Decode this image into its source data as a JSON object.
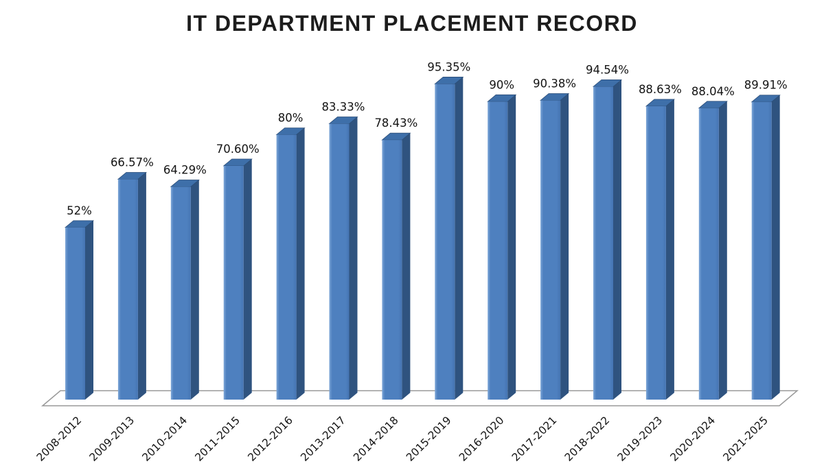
{
  "page": {
    "background": "#ffffff"
  },
  "chart_data": {
    "type": "bar",
    "style": "3d-column",
    "title": "IT DEPARTMENT PLACEMENT RECORD",
    "xlabel": "",
    "ylabel": "",
    "ylim": [
      0,
      100
    ],
    "grid": false,
    "legend": false,
    "axes_visible": false,
    "floor_visible": true,
    "categories": [
      "2008-2012",
      "2009-2013",
      "2010-2014",
      "2011-2015",
      "2012-2016",
      "2013-2017",
      "2014-2018",
      "2015-2019",
      "2016-2020",
      "2017-2021",
      "2018-2022",
      "2019-2023",
      "2020-2024",
      "2021-2025"
    ],
    "values": [
      52,
      66.57,
      64.29,
      70.6,
      80,
      83.33,
      78.43,
      95.35,
      90,
      90.38,
      94.54,
      88.63,
      88.04,
      89.91
    ],
    "value_labels": [
      "52%",
      "66.57%",
      "64.29%",
      "70.60%",
      "80%",
      "83.33%",
      "78.43%",
      "95.35%",
      "90%",
      "90.38%",
      "94.54%",
      "88.63%",
      "88.04%",
      "89.91%"
    ],
    "colors": {
      "bar_front": "#4e80bf",
      "bar_front_highlight": "#7ea7d8",
      "bar_front_shade": "#4574b2",
      "bar_side": "#2f537f",
      "bar_top": "#3e6fa9",
      "bar_top_edge": "#2b4d77",
      "floor_fill": "#ffffff",
      "floor_stroke": "#999999",
      "label_color": "#141414",
      "title_color": "#1c1c1c"
    }
  }
}
